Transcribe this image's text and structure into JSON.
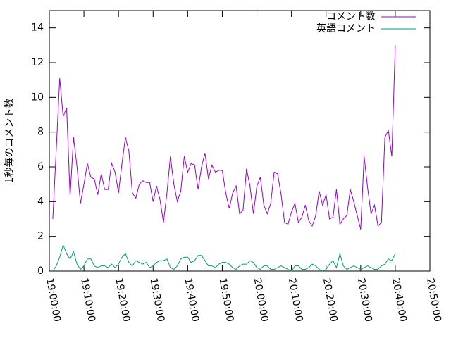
{
  "chart_data": {
    "type": "line",
    "ylabel": "1秒毎のコメント数",
    "ylim": [
      0,
      15
    ],
    "yticks": [
      0,
      2,
      4,
      6,
      8,
      10,
      12,
      14
    ],
    "xlim": [
      "19:00:00",
      "20:50:00"
    ],
    "xticks": [
      "19:00:00",
      "19:10:00",
      "19:20:00",
      "19:30:00",
      "19:40:00",
      "19:50:00",
      "20:00:00",
      "20:10:00",
      "20:20:00",
      "20:30:00",
      "20:40:00",
      "20:50:00"
    ],
    "legend": "top-right",
    "x": [
      "19:01:00",
      "19:02:00",
      "19:03:00",
      "19:04:00",
      "19:05:00",
      "19:06:00",
      "19:07:00",
      "19:08:00",
      "19:09:00",
      "19:10:00",
      "19:11:00",
      "19:12:00",
      "19:13:00",
      "19:14:00",
      "19:15:00",
      "19:16:00",
      "19:17:00",
      "19:18:00",
      "19:19:00",
      "19:20:00",
      "19:21:00",
      "19:22:00",
      "19:23:00",
      "19:24:00",
      "19:25:00",
      "19:26:00",
      "19:27:00",
      "19:28:00",
      "19:29:00",
      "19:30:00",
      "19:31:00",
      "19:32:00",
      "19:33:00",
      "19:34:00",
      "19:35:00",
      "19:36:00",
      "19:37:00",
      "19:38:00",
      "19:39:00",
      "19:40:00",
      "19:41:00",
      "19:42:00",
      "19:43:00",
      "19:44:00",
      "19:45:00",
      "19:46:00",
      "19:47:00",
      "19:48:00",
      "19:49:00",
      "19:50:00",
      "19:51:00",
      "19:52:00",
      "19:53:00",
      "19:54:00",
      "19:55:00",
      "19:56:00",
      "19:57:00",
      "19:58:00",
      "19:59:00",
      "20:00:00",
      "20:01:00",
      "20:02:00",
      "20:03:00",
      "20:04:00",
      "20:05:00",
      "20:06:00",
      "20:07:00",
      "20:08:00",
      "20:09:00",
      "20:10:00",
      "20:11:00",
      "20:12:00",
      "20:13:00",
      "20:14:00",
      "20:15:00",
      "20:16:00",
      "20:17:00",
      "20:18:00",
      "20:19:00",
      "20:20:00",
      "20:21:00",
      "20:22:00",
      "20:23:00",
      "20:24:00",
      "20:25:00",
      "20:26:00",
      "20:27:00",
      "20:28:00",
      "20:29:00",
      "20:30:00",
      "20:31:00",
      "20:32:00",
      "20:33:00",
      "20:34:00",
      "20:35:00",
      "20:36:00",
      "20:37:00",
      "20:38:00",
      "20:39:00",
      "20:40:00"
    ],
    "series": [
      {
        "name": "コメント数",
        "color": "#9400d3",
        "values": [
          3.0,
          7.0,
          11.1,
          8.9,
          9.4,
          4.3,
          7.7,
          6.0,
          3.9,
          5.0,
          6.2,
          5.4,
          5.3,
          4.4,
          5.6,
          4.7,
          4.7,
          6.2,
          5.7,
          4.5,
          6.2,
          7.7,
          6.9,
          4.5,
          4.2,
          5.0,
          5.2,
          5.1,
          5.1,
          4.0,
          4.9,
          4.1,
          2.8,
          4.5,
          6.6,
          5.0,
          4.0,
          4.6,
          6.6,
          5.7,
          6.2,
          6.1,
          4.7,
          6.0,
          6.8,
          5.3,
          6.1,
          5.7,
          5.8,
          5.8,
          4.5,
          3.6,
          4.5,
          4.9,
          3.3,
          3.5,
          5.9,
          4.9,
          3.3,
          4.9,
          5.4,
          3.8,
          3.3,
          3.9,
          5.7,
          5.6,
          4.4,
          2.8,
          2.7,
          3.4,
          3.9,
          2.8,
          3.1,
          3.8,
          2.9,
          2.6,
          3.2,
          4.6,
          3.8,
          4.4,
          3.0,
          3.1,
          4.7,
          2.7,
          3.0,
          3.2,
          4.7,
          4.0,
          3.2,
          2.4,
          6.6,
          4.8,
          3.3,
          3.8,
          2.6,
          2.8,
          7.7,
          8.1,
          6.6,
          13.0
        ]
      },
      {
        "name": "英語コメント",
        "color": "#009e73",
        "values": [
          0,
          0.3,
          0.8,
          1.5,
          1.0,
          0.7,
          1.1,
          0.4,
          0.1,
          0.3,
          0.7,
          0.7,
          0.3,
          0.2,
          0.3,
          0.3,
          0.2,
          0.4,
          0.2,
          0.4,
          0.8,
          1.0,
          0.5,
          0.3,
          0.6,
          0.5,
          0.4,
          0.5,
          0.2,
          0.3,
          0.5,
          0.6,
          0.6,
          0.7,
          0.2,
          0.1,
          0.3,
          0.7,
          0.8,
          0.8,
          0.5,
          0.6,
          0.9,
          0.9,
          0.6,
          0.3,
          0.3,
          0.2,
          0.4,
          0.5,
          0.5,
          0.4,
          0.2,
          0.1,
          0.3,
          0.4,
          0.4,
          0.6,
          0.5,
          0.2,
          0.1,
          0.3,
          0.3,
          0.1,
          0.1,
          0.2,
          0.3,
          0.2,
          0.1,
          0,
          0.3,
          0.3,
          0.1,
          0.1,
          0.2,
          0.4,
          0.3,
          0.1,
          0,
          0.1,
          0.4,
          0.6,
          0.2,
          1.0,
          0.3,
          0.1,
          0.2,
          0.3,
          0.2,
          0.1,
          0.2,
          0.3,
          0.2,
          0.1,
          0.1,
          0.3,
          0.4,
          0.7,
          0.6,
          1.0
        ]
      }
    ]
  }
}
